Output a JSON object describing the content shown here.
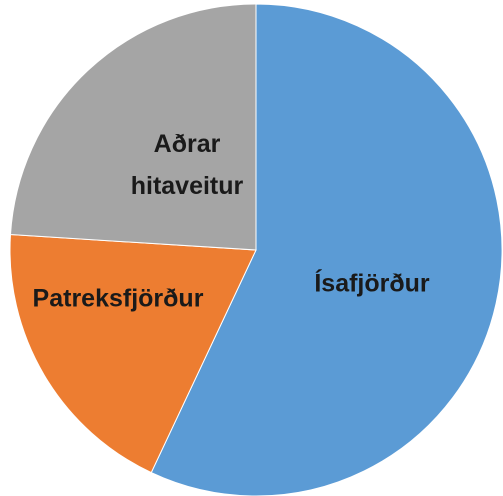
{
  "chart_data": {
    "type": "pie",
    "categories": [
      "Ísafjörður",
      "Patreksfjörður",
      "Aðrar hitaveitur"
    ],
    "values": [
      57,
      19,
      24
    ],
    "colors": [
      "#5b9bd5",
      "#ed7d31",
      "#a5a5a5"
    ]
  }
}
